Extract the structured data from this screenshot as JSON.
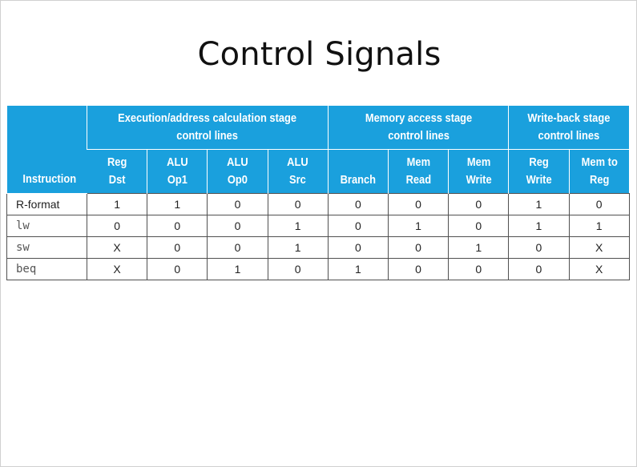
{
  "title": "Control Signals",
  "table": {
    "groups": [
      {
        "label_line1": "Execution/address calculation stage",
        "label_line2": "control lines"
      },
      {
        "label_line1": "Memory access stage",
        "label_line2": "control lines"
      },
      {
        "label_line1": "Write-back stage",
        "label_line2": "control lines"
      }
    ],
    "instruction_header": "Instruction",
    "columns": [
      {
        "line1": "Reg",
        "line2": "Dst"
      },
      {
        "line1": "ALU",
        "line2": "Op1"
      },
      {
        "line1": "ALU",
        "line2": "Op0"
      },
      {
        "line1": "ALU",
        "line2": "Src"
      },
      {
        "line1": "",
        "line2": "Branch"
      },
      {
        "line1": "Mem",
        "line2": "Read"
      },
      {
        "line1": "Mem",
        "line2": "Write"
      },
      {
        "line1": "Reg",
        "line2": "Write"
      },
      {
        "line1": "Mem to",
        "line2": "Reg"
      }
    ],
    "rows": [
      {
        "instruction": "R-format",
        "values": [
          "1",
          "1",
          "0",
          "0",
          "0",
          "0",
          "0",
          "1",
          "0"
        ]
      },
      {
        "instruction": "lw",
        "values": [
          "0",
          "0",
          "0",
          "1",
          "0",
          "1",
          "0",
          "1",
          "1"
        ]
      },
      {
        "instruction": "sw",
        "values": [
          "X",
          "0",
          "0",
          "1",
          "0",
          "0",
          "1",
          "0",
          "X"
        ]
      },
      {
        "instruction": "beq",
        "values": [
          "X",
          "0",
          "1",
          "0",
          "1",
          "0",
          "0",
          "0",
          "X"
        ]
      }
    ]
  },
  "colors": {
    "header_bg": "#1aa0dd",
    "header_text": "#ffffff",
    "grid": "#505050"
  }
}
